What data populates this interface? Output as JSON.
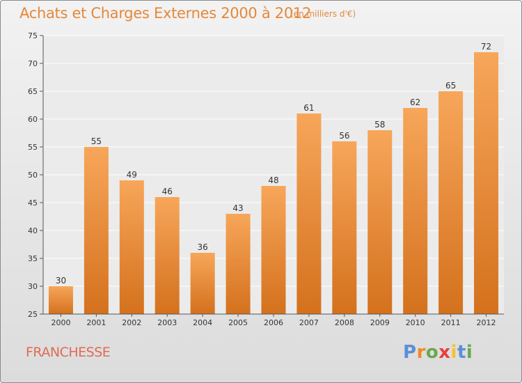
{
  "title": "Achats et Charges Externes 2000 à 2012",
  "subtitle": "(en milliers d'€)",
  "place_name": "FRANCHESSE",
  "logo": {
    "letters": [
      "P",
      "r",
      "o",
      "x",
      "i",
      "t",
      "i"
    ],
    "colors": [
      "#5b8fd8",
      "#f08a24",
      "#6aa84f",
      "#e8413b",
      "#f2c230",
      "#5b8fd8",
      "#6aa84f"
    ]
  },
  "colors": {
    "bar_top": "#f7a65a",
    "bar_bottom": "#d4711d",
    "title": "#e4883a"
  },
  "chart_data": {
    "type": "bar",
    "title": "Achats et Charges Externes 2000 à 2012",
    "subtitle": "(en milliers d'€)",
    "categories": [
      "2000",
      "2001",
      "2002",
      "2003",
      "2004",
      "2005",
      "2006",
      "2007",
      "2008",
      "2009",
      "2010",
      "2011",
      "2012"
    ],
    "values": [
      30,
      55,
      49,
      46,
      36,
      43,
      48,
      61,
      56,
      58,
      62,
      65,
      72
    ],
    "ylim": [
      25,
      75
    ],
    "yticks": [
      25,
      30,
      35,
      40,
      45,
      50,
      55,
      60,
      65,
      70,
      75
    ],
    "grid": true,
    "legend": "none"
  }
}
